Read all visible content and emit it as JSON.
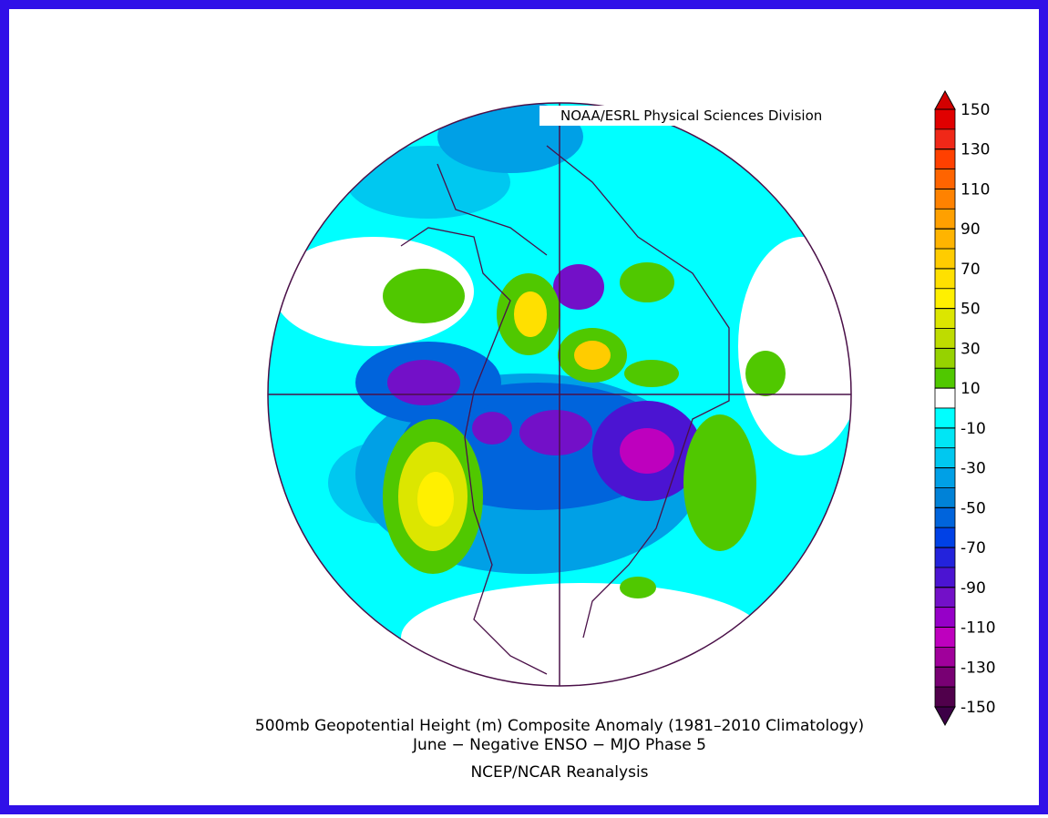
{
  "credit": "NOAA/ESRL Physical Sciences Division",
  "title_line1": "500mb Geopotential Height (m) Composite Anomaly (1981–2010 Climatology)",
  "title_line2": "June − Negative ENSO − MJO Phase 5",
  "source": "NCEP/NCAR Reanalysis",
  "colorbar": {
    "labels": [
      150,
      130,
      110,
      90,
      70,
      50,
      30,
      10,
      -10,
      -30,
      -50,
      -70,
      -90,
      -110,
      -130,
      -150
    ],
    "colors": [
      "#e00000",
      "#f02818",
      "#ff4000",
      "#ff6400",
      "#ff8200",
      "#ffa000",
      "#ffb400",
      "#ffcc00",
      "#ffe000",
      "#fff000",
      "#dce600",
      "#bedc00",
      "#96d200",
      "#50c800",
      "#ffffff",
      "#00ffff",
      "#00e6f5",
      "#00c8f0",
      "#00a0e6",
      "#0082d7",
      "#0064dc",
      "#0041e6",
      "#2323dc",
      "#4b14d2",
      "#7310c8",
      "#9600c8",
      "#be00be",
      "#a0009b",
      "#780073",
      "#50004b"
    ],
    "top_color": "#d20000",
    "bottom_color": "#3c0046"
  }
}
